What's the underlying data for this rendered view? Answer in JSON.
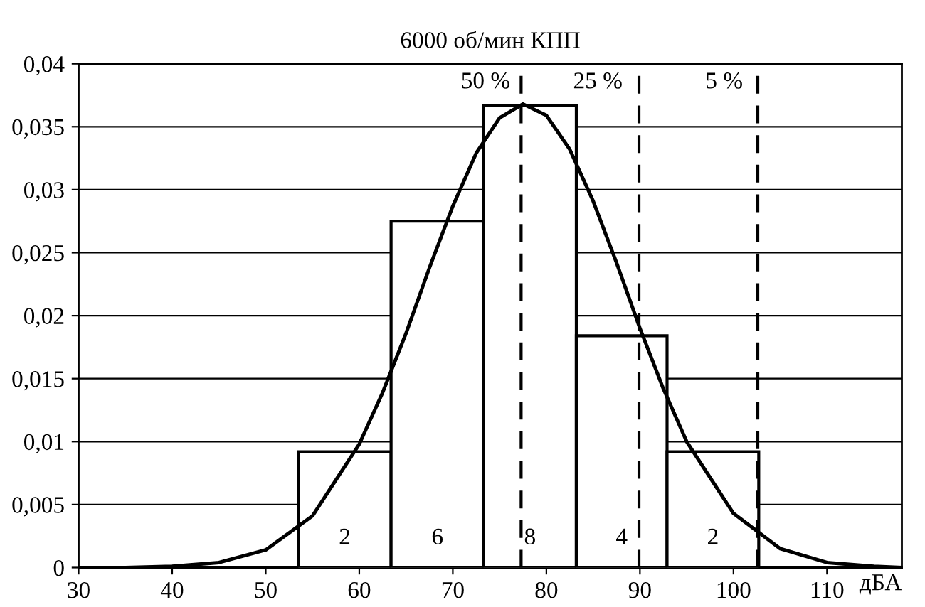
{
  "chart_data": {
    "type": "histogram",
    "title": "6000 об/мин КПП",
    "xlabel": "дБА",
    "bins": [
      53.5,
      63.4,
      73.3,
      83.2,
      92.9,
      102.7
    ],
    "values": [
      0.0092,
      0.0275,
      0.0367,
      0.0184,
      0.0092
    ],
    "color": "#ffffff",
    "series": [
      {
        "type": "line",
        "color": "#000000",
        "x": [
          30,
          35,
          40,
          45,
          50,
          55,
          60,
          62.5,
          65,
          67.5,
          70,
          72.5,
          75,
          77.5,
          80,
          82.5,
          85,
          87.5,
          90,
          92.5,
          95,
          100,
          105,
          110,
          115,
          118
        ],
        "values": [
          0,
          0,
          0.0001,
          0.0004,
          0.0014,
          0.0041,
          0.0098,
          0.0139,
          0.0186,
          0.0238,
          0.0287,
          0.0329,
          0.0357,
          0.0368,
          0.0359,
          0.0332,
          0.0291,
          0.0242,
          0.019,
          0.0142,
          0.01,
          0.0043,
          0.0015,
          0.0004,
          0.0001,
          0
        ]
      }
    ],
    "annotations": [
      {
        "text": "2",
        "x": 58.45,
        "y": 0.0023
      },
      {
        "text": "6",
        "x": 68.35,
        "y": 0.0023
      },
      {
        "text": "8",
        "x": 78.25,
        "y": 0.0023
      },
      {
        "text": "4",
        "x": 88.05,
        "y": 0.0023
      },
      {
        "text": "2",
        "x": 97.8,
        "y": 0.0023
      },
      {
        "text": "50 %",
        "x": 73.5,
        "y": 0.0385
      },
      {
        "text": "25 %",
        "x": 85.5,
        "y": 0.0385
      },
      {
        "text": "5 %",
        "x": 99,
        "y": 0.0385
      }
    ],
    "ref_lines": [
      {
        "axis": "x",
        "value": 77.3,
        "color": "#000000",
        "line_style": "dashed"
      },
      {
        "axis": "x",
        "value": 89.9,
        "color": "#000000",
        "line_style": "dashed"
      },
      {
        "axis": "x",
        "value": 102.6,
        "color": "#000000",
        "line_style": "dashed"
      }
    ],
    "xlim": [
      30,
      118
    ],
    "ylim": [
      0,
      0.04
    ],
    "xticks": [
      30,
      40,
      50,
      60,
      70,
      80,
      90,
      100,
      110
    ],
    "yticks": [
      {
        "value": 0,
        "label": "0"
      },
      {
        "value": 0.005,
        "label": "0,005"
      },
      {
        "value": 0.01,
        "label": "0,01"
      },
      {
        "value": 0.015,
        "label": "0,015"
      },
      {
        "value": 0.02,
        "label": "0,02"
      },
      {
        "value": 0.025,
        "label": "0,025"
      },
      {
        "value": 0.03,
        "label": "0,03"
      },
      {
        "value": 0.035,
        "label": "0,035"
      },
      {
        "value": 0.04,
        "label": "0,04"
      }
    ],
    "grid": "y"
  }
}
